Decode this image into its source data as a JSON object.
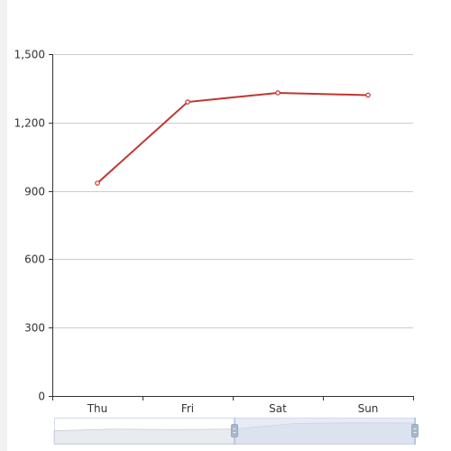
{
  "chart_data": {
    "type": "line",
    "categories": [
      "Thu",
      "Fri",
      "Sat",
      "Sun"
    ],
    "series": [
      {
        "values": [
          934,
          1290,
          1330,
          1320
        ]
      }
    ],
    "xlabel": "",
    "ylabel": "",
    "ylim": [
      0,
      1500
    ],
    "yticks": [
      0,
      300,
      600,
      900,
      1200,
      1500
    ],
    "ytick_labels": [
      "0",
      "300",
      "600",
      "900",
      "1,200",
      "1,500"
    ],
    "grid": true,
    "data_zoom": {
      "overview_values": [
        820,
        932,
        901,
        934,
        1290,
        1330,
        1320
      ],
      "start_percent": 50,
      "end_percent": 100
    }
  },
  "colors": {
    "series": "#c23531",
    "axis": "#333333",
    "grid": "#cccccc",
    "zoom_fill": "#d2dbee",
    "zoom_handle": "#a7b7cc",
    "zoom_area": "#d8dde6",
    "zoom_border": "#d2dbee"
  }
}
